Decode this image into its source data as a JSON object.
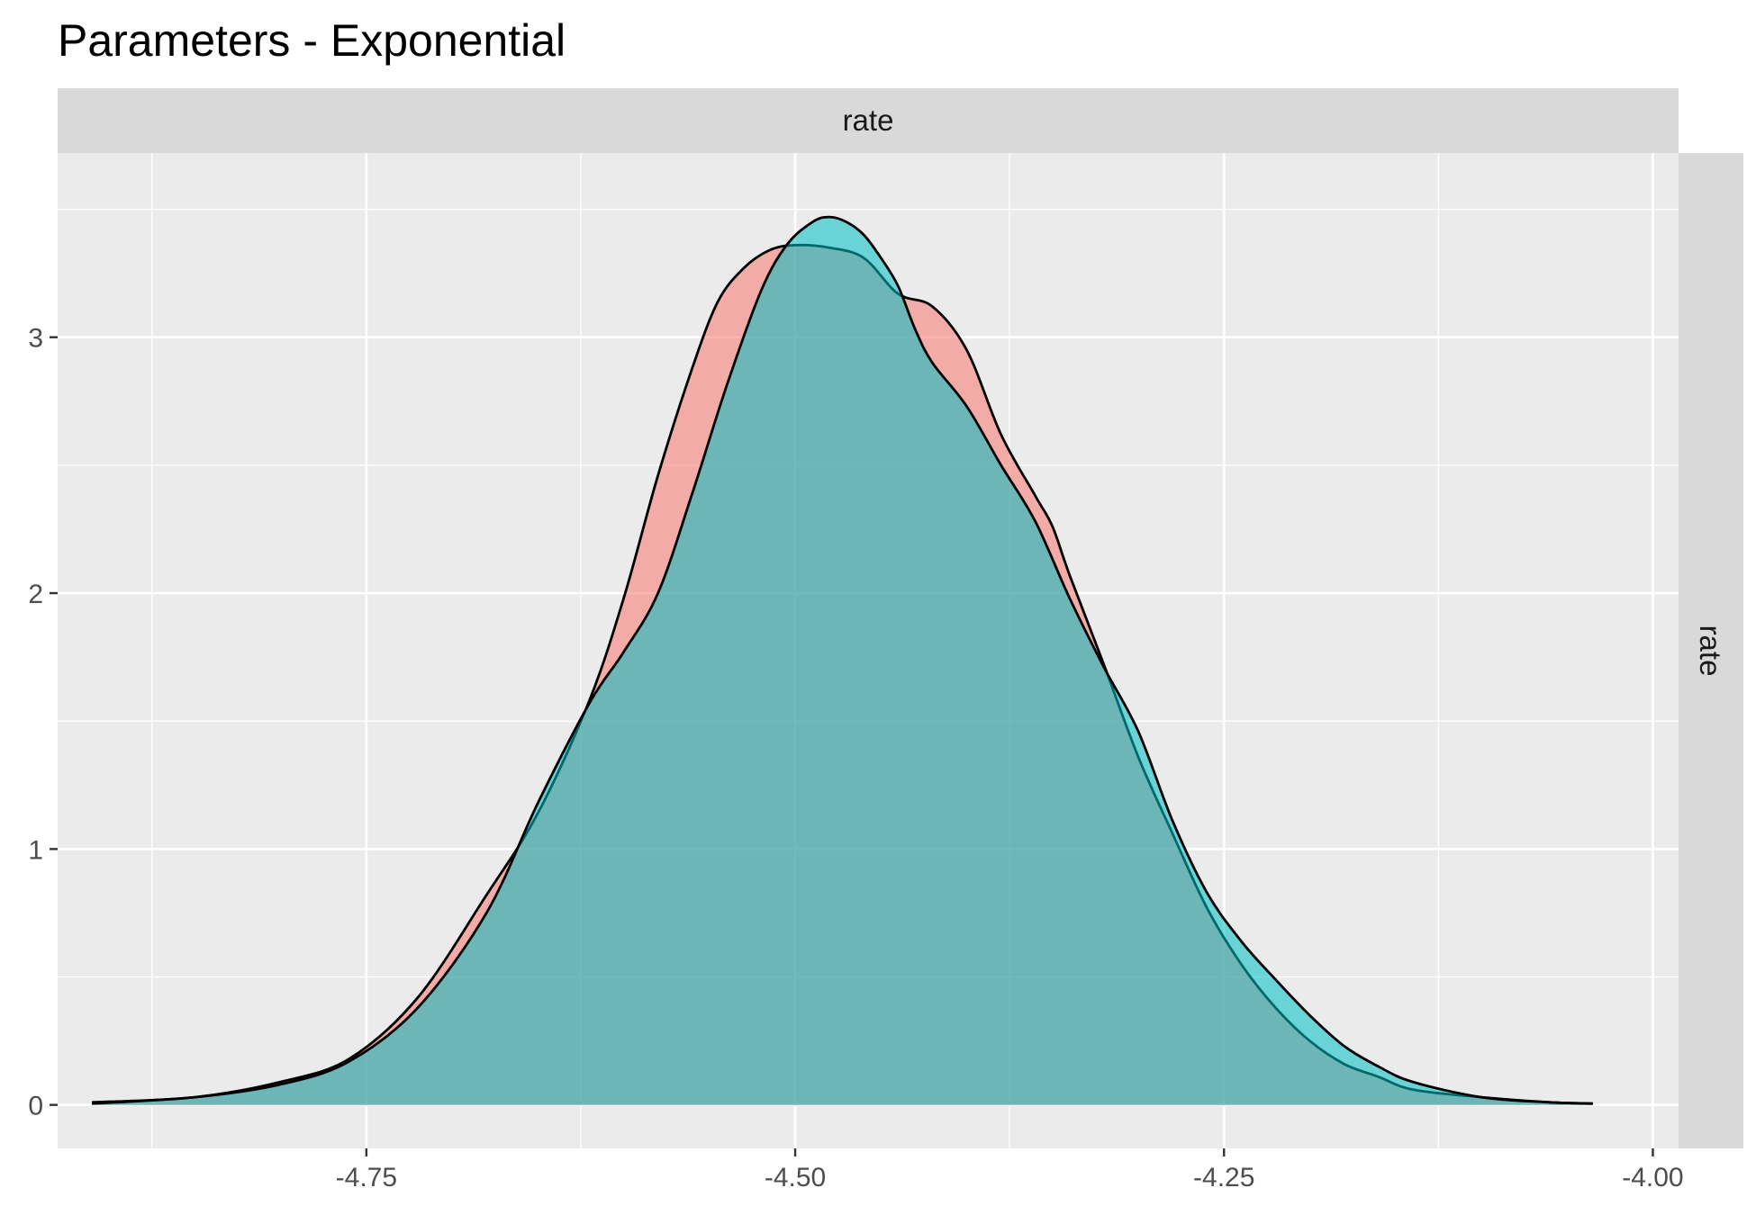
{
  "chart_data": {
    "type": "area",
    "title": "Parameters - Exponential",
    "facet_label_top": "rate",
    "facet_label_right": "rate",
    "xlabel": "",
    "ylabel": "",
    "xlim": [
      -4.93,
      -3.985
    ],
    "ylim": [
      -0.17,
      3.72
    ],
    "x_ticks": [
      -4.75,
      -4.5,
      -4.25,
      -4.0
    ],
    "x_tick_labels": [
      "-4.75",
      "-4.50",
      "-4.25",
      "-4.00"
    ],
    "y_ticks": [
      0,
      1,
      2,
      3
    ],
    "y_tick_labels": [
      "0",
      "1",
      "2",
      "3"
    ],
    "grid": true,
    "legend": "none",
    "colors": {
      "panel_bg": "#EBEBEB",
      "strip_bg": "#D9D9D9",
      "grid_major": "#FFFFFF",
      "series_1_fill": "#F8766D",
      "series_2_fill": "#00BFC4",
      "outline": "#000000"
    },
    "series": [
      {
        "fill": "#F8766D",
        "x": [
          -4.91,
          -4.85,
          -4.8,
          -4.76,
          -4.72,
          -4.68,
          -4.65,
          -4.62,
          -4.6,
          -4.58,
          -4.56,
          -4.545,
          -4.53,
          -4.515,
          -4.5,
          -4.48,
          -4.46,
          -4.44,
          -4.42,
          -4.4,
          -4.38,
          -4.36,
          -4.35,
          -4.34,
          -4.32,
          -4.3,
          -4.28,
          -4.26,
          -4.24,
          -4.22,
          -4.2,
          -4.18,
          -4.16,
          -4.14,
          -4.1,
          -4.06,
          -4.035
        ],
        "y": [
          0.01,
          0.03,
          0.09,
          0.18,
          0.42,
          0.82,
          1.14,
          1.58,
          1.98,
          2.46,
          2.88,
          3.14,
          3.27,
          3.34,
          3.36,
          3.35,
          3.31,
          3.17,
          3.12,
          2.95,
          2.62,
          2.38,
          2.26,
          2.07,
          1.72,
          1.36,
          1.06,
          0.77,
          0.55,
          0.38,
          0.25,
          0.16,
          0.11,
          0.06,
          0.03,
          0.01,
          0.005
        ]
      },
      {
        "fill": "#00BFC4",
        "x": [
          -4.91,
          -4.85,
          -4.8,
          -4.76,
          -4.72,
          -4.68,
          -4.65,
          -4.62,
          -4.6,
          -4.58,
          -4.56,
          -4.54,
          -4.52,
          -4.505,
          -4.49,
          -4.48,
          -4.47,
          -4.46,
          -4.45,
          -4.44,
          -4.43,
          -4.42,
          -4.4,
          -4.38,
          -4.36,
          -4.34,
          -4.32,
          -4.3,
          -4.28,
          -4.26,
          -4.24,
          -4.22,
          -4.2,
          -4.18,
          -4.16,
          -4.14,
          -4.1,
          -4.06,
          -4.035
        ],
        "y": [
          0.005,
          0.03,
          0.08,
          0.17,
          0.38,
          0.75,
          1.18,
          1.57,
          1.77,
          2.0,
          2.39,
          2.81,
          3.18,
          3.36,
          3.45,
          3.47,
          3.45,
          3.4,
          3.31,
          3.2,
          3.03,
          2.9,
          2.73,
          2.5,
          2.28,
          1.98,
          1.71,
          1.46,
          1.11,
          0.83,
          0.64,
          0.49,
          0.35,
          0.23,
          0.15,
          0.09,
          0.03,
          0.01,
          0.005
        ]
      }
    ]
  }
}
